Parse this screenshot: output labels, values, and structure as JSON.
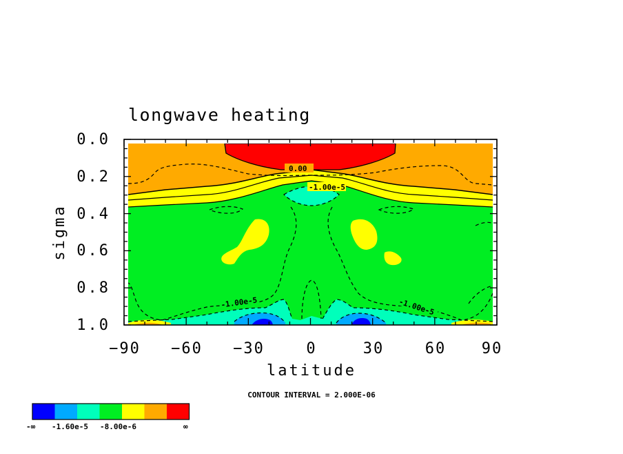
{
  "chart_data": {
    "type": "contour",
    "title": "longwave heating",
    "xlabel": "latitude",
    "ylabel": "sigma",
    "xlim": [
      -90,
      90
    ],
    "ylim": [
      1.0,
      0.0
    ],
    "x_ticks": [
      -90,
      -60,
      -30,
      0,
      30,
      60,
      90
    ],
    "x_tick_labels": [
      "−90",
      "−60",
      "−30",
      "0",
      "30",
      "60",
      "90"
    ],
    "y_ticks": [
      0.0,
      0.2,
      0.4,
      0.6,
      0.8,
      1.0
    ],
    "y_tick_labels": [
      "0.0",
      "0.2",
      "0.4",
      "0.6",
      "0.8",
      "1.0"
    ],
    "contour_interval_label": "CONTOUR INTERVAL = 2.000E-06",
    "contour_labels": [
      {
        "text": "0.00",
        "lat": -2,
        "sigma": 0.165
      },
      {
        "text": "-1.00e-5",
        "lat": 4,
        "sigma": 0.265
      },
      {
        "text": "-1.00e-5",
        "lat": -36,
        "sigma": 0.88
      },
      {
        "text": "-1.00e-5",
        "lat": 51,
        "sigma": 0.9
      }
    ],
    "colorbar": {
      "colors": [
        "#0000ff",
        "#00aaff",
        "#00ffbb",
        "#00ee22",
        "#ffff00",
        "#ffaa00",
        "#ff0000"
      ],
      "labels": [
        "-∞",
        "-1.60e-5",
        "-8.00e-6",
        "∞"
      ]
    },
    "regions": [
      {
        "name": "orange-band",
        "color": "#ffaa00",
        "lat_range": [
          -90,
          90
        ],
        "sigma_range": [
          0.0,
          0.3
        ]
      },
      {
        "name": "yellow-band",
        "color": "#ffff00",
        "lat_range": [
          -90,
          90
        ],
        "sigma_range": [
          0.2,
          0.37
        ]
      },
      {
        "name": "green-bulk",
        "color": "#00ee22",
        "lat_range": [
          -90,
          90
        ],
        "sigma_range": [
          0.3,
          1.0
        ]
      },
      {
        "name": "red-cap",
        "color": "#ff0000",
        "lat_range": [
          -42,
          42
        ],
        "sigma_range": [
          0.0,
          0.16
        ]
      }
    ]
  }
}
